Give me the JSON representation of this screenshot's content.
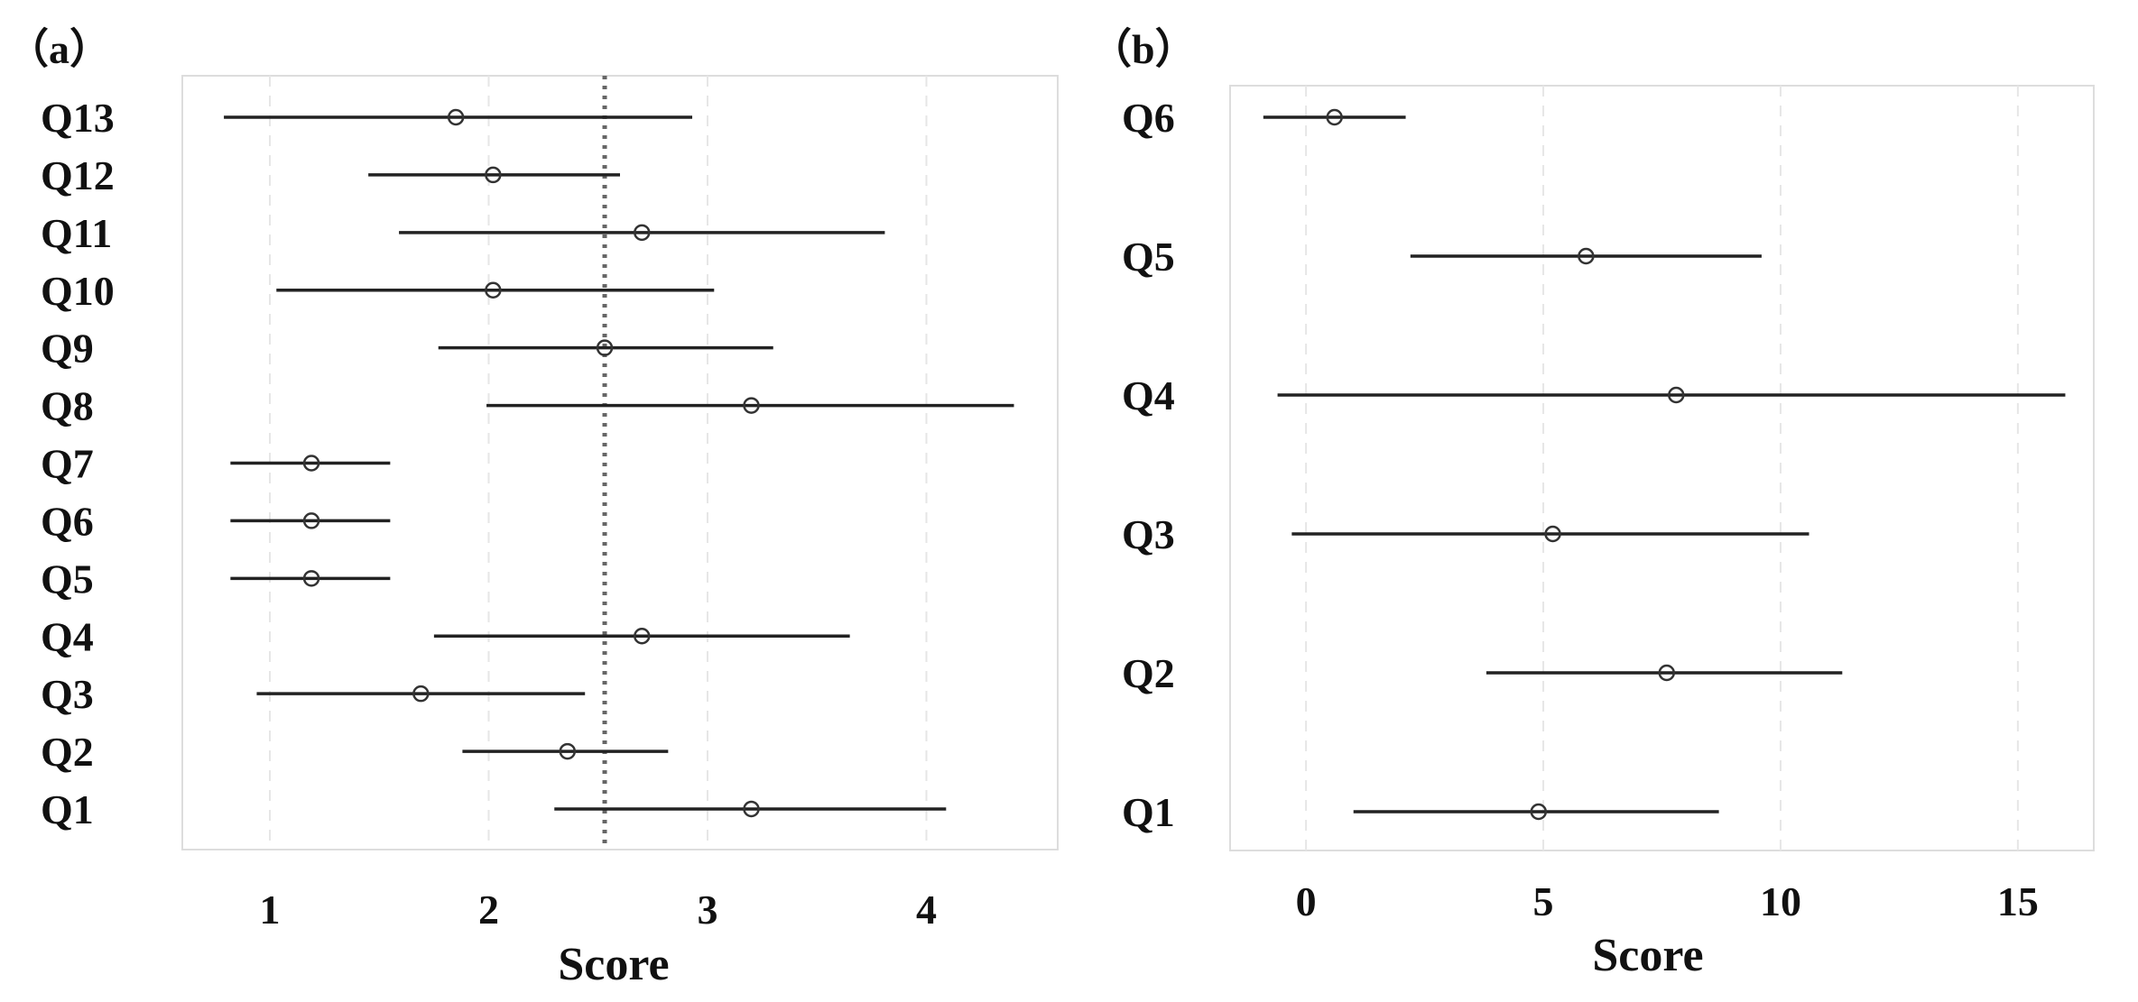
{
  "chart_data": [
    {
      "type": "scatter",
      "panel_label": "（a）",
      "xlabel": "Score",
      "ylabel": "",
      "xlim": [
        0.6,
        4.6
      ],
      "xticks": [
        "1",
        "2",
        "3",
        "4"
      ],
      "xtick_values": [
        1,
        2,
        3,
        4
      ],
      "grid": true,
      "reference_line_x": 2.53,
      "categories": [
        "Q13",
        "Q12",
        "Q11",
        "Q10",
        "Q9",
        "Q8",
        "Q7",
        "Q6",
        "Q5",
        "Q4",
        "Q3",
        "Q2",
        "Q1"
      ],
      "series": [
        {
          "values": [
            1.85,
            2.02,
            2.7,
            2.02,
            2.53,
            3.2,
            1.19,
            1.19,
            1.19,
            2.7,
            1.69,
            2.36,
            3.2
          ],
          "lower": [
            0.79,
            1.45,
            1.59,
            1.03,
            1.77,
            1.99,
            0.82,
            0.82,
            0.82,
            1.75,
            0.94,
            1.88,
            2.3
          ],
          "upper": [
            2.93,
            2.6,
            3.81,
            3.03,
            3.3,
            4.4,
            1.55,
            1.55,
            1.55,
            3.65,
            2.44,
            2.82,
            4.09
          ]
        }
      ]
    },
    {
      "type": "scatter",
      "panel_label": "（b）",
      "xlabel": "Score",
      "ylabel": "",
      "xlim": [
        -1.6,
        16.6
      ],
      "xticks": [
        "0",
        "5",
        "10",
        "15"
      ],
      "xtick_values": [
        0,
        5,
        10,
        15
      ],
      "grid": true,
      "categories": [
        "Q6",
        "Q5",
        "Q4",
        "Q3",
        "Q2",
        "Q1"
      ],
      "series": [
        {
          "values": [
            0.6,
            5.9,
            7.8,
            5.2,
            7.6,
            4.9
          ],
          "lower": [
            -0.9,
            2.2,
            -0.6,
            -0.3,
            3.8,
            1.0
          ],
          "upper": [
            2.1,
            9.6,
            16.0,
            10.6,
            11.3,
            8.7
          ]
        }
      ]
    }
  ]
}
